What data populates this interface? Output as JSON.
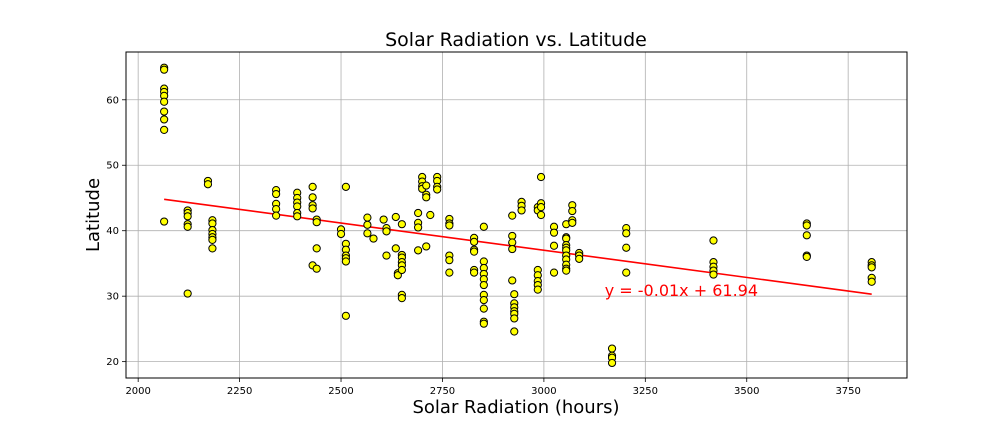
{
  "chart_data": {
    "type": "scatter",
    "title": "Solar Radiation vs. Latitude",
    "xlabel": "Solar Radiation (hours)",
    "ylabel": "Latitude",
    "xlim": [
      1970,
      3895
    ],
    "ylim": [
      17.5,
      67.3
    ],
    "xticks": [
      2000,
      2250,
      2500,
      2750,
      3000,
      3250,
      3500,
      3750
    ],
    "yticks": [
      20,
      30,
      40,
      50,
      60
    ],
    "grid": true,
    "marker_color": "#ffff00",
    "marker_edge_color": "#000000",
    "line_color": "#ff0000",
    "regression": {
      "slope": -0.01,
      "intercept": 61.94,
      "x_range": [
        2064,
        3808
      ],
      "y_range": [
        44.8,
        30.3
      ]
    },
    "annotation": {
      "text": "y = -0.01x + 61.94",
      "color": "#ff0000",
      "x": 3150,
      "y": 30.0
    },
    "points": [
      [
        2064,
        64.9
      ],
      [
        2064,
        64.6
      ],
      [
        2064,
        61.7
      ],
      [
        2064,
        61.2
      ],
      [
        2064,
        60.6
      ],
      [
        2064,
        59.7
      ],
      [
        2064,
        58.2
      ],
      [
        2064,
        57.0
      ],
      [
        2064,
        55.4
      ],
      [
        2064,
        41.4
      ],
      [
        2122,
        43.1
      ],
      [
        2122,
        42.7
      ],
      [
        2122,
        42.2
      ],
      [
        2122,
        41.0
      ],
      [
        2122,
        40.6
      ],
      [
        2122,
        30.4
      ],
      [
        2172,
        47.6
      ],
      [
        2172,
        47.1
      ],
      [
        2183,
        41.6
      ],
      [
        2183,
        41.1
      ],
      [
        2183,
        40.1
      ],
      [
        2183,
        39.5
      ],
      [
        2183,
        39.0
      ],
      [
        2183,
        38.6
      ],
      [
        2183,
        37.3
      ],
      [
        2340,
        46.2
      ],
      [
        2340,
        45.6
      ],
      [
        2340,
        44.1
      ],
      [
        2340,
        43.3
      ],
      [
        2340,
        42.3
      ],
      [
        2392,
        45.8
      ],
      [
        2392,
        45.0
      ],
      [
        2392,
        44.3
      ],
      [
        2392,
        43.7
      ],
      [
        2392,
        42.7
      ],
      [
        2392,
        42.2
      ],
      [
        2430,
        46.7
      ],
      [
        2430,
        45.1
      ],
      [
        2430,
        43.9
      ],
      [
        2430,
        43.4
      ],
      [
        2430,
        34.7
      ],
      [
        2440,
        41.7
      ],
      [
        2440,
        41.3
      ],
      [
        2440,
        37.3
      ],
      [
        2440,
        34.2
      ],
      [
        2500,
        40.2
      ],
      [
        2500,
        39.5
      ],
      [
        2512,
        46.7
      ],
      [
        2512,
        38.0
      ],
      [
        2512,
        37.1
      ],
      [
        2512,
        36.2
      ],
      [
        2512,
        35.8
      ],
      [
        2512,
        35.3
      ],
      [
        2512,
        27.0
      ],
      [
        2565,
        42.0
      ],
      [
        2565,
        40.9
      ],
      [
        2565,
        39.6
      ],
      [
        2580,
        38.8
      ],
      [
        2605,
        41.7
      ],
      [
        2612,
        40.4
      ],
      [
        2612,
        39.9
      ],
      [
        2612,
        36.2
      ],
      [
        2635,
        42.1
      ],
      [
        2635,
        37.3
      ],
      [
        2640,
        33.5
      ],
      [
        2640,
        33.2
      ],
      [
        2650,
        41.0
      ],
      [
        2650,
        36.3
      ],
      [
        2650,
        35.9
      ],
      [
        2650,
        35.2
      ],
      [
        2650,
        34.7
      ],
      [
        2650,
        34.0
      ],
      [
        2650,
        30.2
      ],
      [
        2650,
        29.7
      ],
      [
        2690,
        42.7
      ],
      [
        2690,
        41.2
      ],
      [
        2690,
        40.5
      ],
      [
        2690,
        37.0
      ],
      [
        2700,
        48.2
      ],
      [
        2700,
        47.5
      ],
      [
        2700,
        46.8
      ],
      [
        2700,
        46.4
      ],
      [
        2710,
        46.9
      ],
      [
        2710,
        45.5
      ],
      [
        2710,
        45.1
      ],
      [
        2710,
        37.6
      ],
      [
        2720,
        42.4
      ],
      [
        2737,
        48.2
      ],
      [
        2737,
        47.6
      ],
      [
        2737,
        46.7
      ],
      [
        2737,
        46.3
      ],
      [
        2767,
        41.8
      ],
      [
        2767,
        41.1
      ],
      [
        2767,
        40.8
      ],
      [
        2767,
        36.2
      ],
      [
        2767,
        35.5
      ],
      [
        2767,
        33.6
      ],
      [
        2828,
        38.9
      ],
      [
        2828,
        38.3
      ],
      [
        2828,
        37.1
      ],
      [
        2828,
        36.8
      ],
      [
        2828,
        34.0
      ],
      [
        2828,
        33.6
      ],
      [
        2852,
        40.6
      ],
      [
        2852,
        35.3
      ],
      [
        2852,
        34.3
      ],
      [
        2852,
        33.4
      ],
      [
        2852,
        32.6
      ],
      [
        2852,
        31.7
      ],
      [
        2852,
        30.2
      ],
      [
        2852,
        29.4
      ],
      [
        2852,
        28.1
      ],
      [
        2852,
        26.1
      ],
      [
        2852,
        25.8
      ],
      [
        2922,
        42.3
      ],
      [
        2922,
        39.2
      ],
      [
        2922,
        38.2
      ],
      [
        2922,
        37.2
      ],
      [
        2922,
        32.4
      ],
      [
        2927,
        30.3
      ],
      [
        2927,
        28.9
      ],
      [
        2927,
        28.3
      ],
      [
        2927,
        27.7
      ],
      [
        2927,
        27.3
      ],
      [
        2927,
        26.6
      ],
      [
        2927,
        24.6
      ],
      [
        2945,
        44.4
      ],
      [
        2945,
        43.8
      ],
      [
        2945,
        43.1
      ],
      [
        2985,
        43.6
      ],
      [
        2985,
        43.1
      ],
      [
        2985,
        34.0
      ],
      [
        2985,
        33.2
      ],
      [
        2985,
        32.3
      ],
      [
        2985,
        31.7
      ],
      [
        2985,
        31.0
      ],
      [
        2993,
        48.2
      ],
      [
        2993,
        44.2
      ],
      [
        2993,
        43.6
      ],
      [
        2993,
        42.4
      ],
      [
        3025,
        40.6
      ],
      [
        3025,
        39.7
      ],
      [
        3025,
        37.7
      ],
      [
        3025,
        33.6
      ],
      [
        3055,
        41.0
      ],
      [
        3055,
        39.0
      ],
      [
        3055,
        38.8
      ],
      [
        3055,
        37.8
      ],
      [
        3055,
        37.4
      ],
      [
        3055,
        37.0
      ],
      [
        3055,
        36.2
      ],
      [
        3055,
        35.6
      ],
      [
        3055,
        34.8
      ],
      [
        3055,
        34.2
      ],
      [
        3055,
        33.9
      ],
      [
        3070,
        43.9
      ],
      [
        3070,
        43.0
      ],
      [
        3070,
        41.6
      ],
      [
        3070,
        41.2
      ],
      [
        3087,
        36.6
      ],
      [
        3087,
        36.2
      ],
      [
        3087,
        35.7
      ],
      [
        3168,
        22.0
      ],
      [
        3168,
        20.9
      ],
      [
        3168,
        20.6
      ],
      [
        3168,
        19.8
      ],
      [
        3203,
        40.4
      ],
      [
        3203,
        39.6
      ],
      [
        3203,
        37.4
      ],
      [
        3203,
        33.6
      ],
      [
        3418,
        38.5
      ],
      [
        3418,
        35.2
      ],
      [
        3418,
        34.5
      ],
      [
        3418,
        33.9
      ],
      [
        3418,
        33.3
      ],
      [
        3648,
        41.1
      ],
      [
        3648,
        40.8
      ],
      [
        3648,
        39.3
      ],
      [
        3648,
        36.2
      ],
      [
        3648,
        36.0
      ],
      [
        3808,
        35.2
      ],
      [
        3808,
        34.7
      ],
      [
        3808,
        34.4
      ],
      [
        3808,
        32.8
      ],
      [
        3808,
        32.2
      ]
    ]
  }
}
